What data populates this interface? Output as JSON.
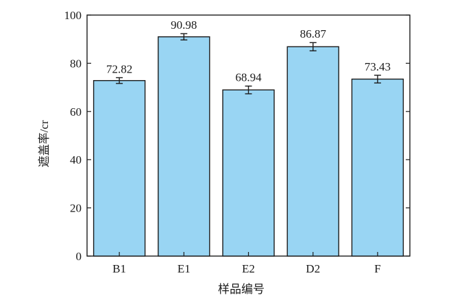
{
  "chart_data": {
    "type": "bar",
    "title": "",
    "xlabel": "样品编号",
    "ylabel": "遮盖率/cr",
    "categories": [
      "B1",
      "E1",
      "E2",
      "D2",
      "F"
    ],
    "values": [
      72.82,
      90.98,
      68.94,
      86.87,
      73.43
    ],
    "error": [
      1.2,
      1.3,
      1.6,
      1.7,
      1.6
    ],
    "data_labels": [
      "72.82",
      "90.98",
      "68.94",
      "86.87",
      "73.43"
    ],
    "ylim": [
      0,
      100
    ],
    "yticks": [
      0,
      20,
      40,
      60,
      80,
      100
    ],
    "ytick_labels": [
      "0",
      "20",
      "40",
      "60",
      "80",
      "100"
    ],
    "grid": false,
    "bar_color": "#99d5f3",
    "bar_edge_color": "#1a1a1a",
    "axis_color": "#1a1a1a"
  }
}
